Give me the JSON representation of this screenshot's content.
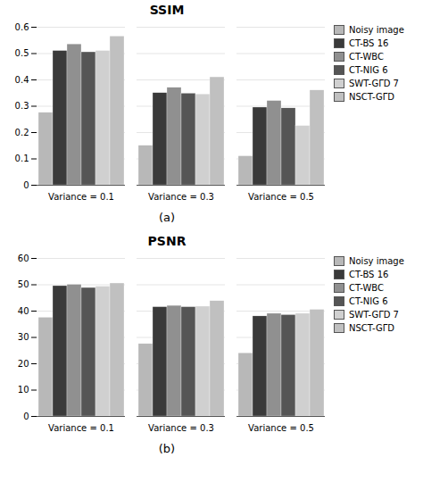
{
  "chart_data": [
    {
      "type": "bar",
      "title": "SSIM",
      "subtitle": "(a)",
      "categories": [
        "Variance = 0.1",
        "Variance = 0.3",
        "Variance = 0.5"
      ],
      "series": [
        {
          "name": "Noisy image",
          "color": "#b8b8b8",
          "values": [
            0.275,
            0.15,
            0.11
          ]
        },
        {
          "name": "CT-BS 16",
          "color": "#3a3a3a",
          "values": [
            0.51,
            0.35,
            0.295
          ]
        },
        {
          "name": "CT-WBC",
          "color": "#909090",
          "values": [
            0.535,
            0.37,
            0.32
          ]
        },
        {
          "name": "CT-NIG 6",
          "color": "#555555",
          "values": [
            0.505,
            0.348,
            0.292
          ]
        },
        {
          "name": "SWT-GΓD 7",
          "color": "#d0d0d0",
          "values": [
            0.51,
            0.345,
            0.225
          ]
        },
        {
          "name": "NSCT-GΓD",
          "color": "#c0c0c0",
          "values": [
            0.565,
            0.41,
            0.36
          ]
        }
      ],
      "ylim": [
        0,
        0.6
      ],
      "yticks": [
        0,
        0.1,
        0.2,
        0.3,
        0.4,
        0.5,
        0.6
      ],
      "grid": true,
      "legend": "right"
    },
    {
      "type": "bar",
      "title": "PSNR",
      "subtitle": "(b)",
      "categories": [
        "Variance = 0.1",
        "Variance = 0.3",
        "Variance = 0.5"
      ],
      "series": [
        {
          "name": "Noisy image",
          "color": "#b8b8b8",
          "values": [
            37.5,
            27.5,
            24.0
          ]
        },
        {
          "name": "CT-BS 16",
          "color": "#3a3a3a",
          "values": [
            49.5,
            41.5,
            38.0
          ]
        },
        {
          "name": "CT-WBC",
          "color": "#909090",
          "values": [
            50.0,
            42.0,
            39.0
          ]
        },
        {
          "name": "CT-NIG 6",
          "color": "#555555",
          "values": [
            48.8,
            41.5,
            38.5
          ]
        },
        {
          "name": "SWT-GΓD 7",
          "color": "#d0d0d0",
          "values": [
            49.3,
            41.7,
            39.0
          ]
        },
        {
          "name": "NSCT-GΓD",
          "color": "#c0c0c0",
          "values": [
            50.5,
            43.8,
            40.5
          ]
        }
      ],
      "ylim": [
        0,
        60
      ],
      "yticks": [
        0,
        10,
        20,
        30,
        40,
        50,
        60
      ],
      "grid": true,
      "legend": "right"
    }
  ]
}
